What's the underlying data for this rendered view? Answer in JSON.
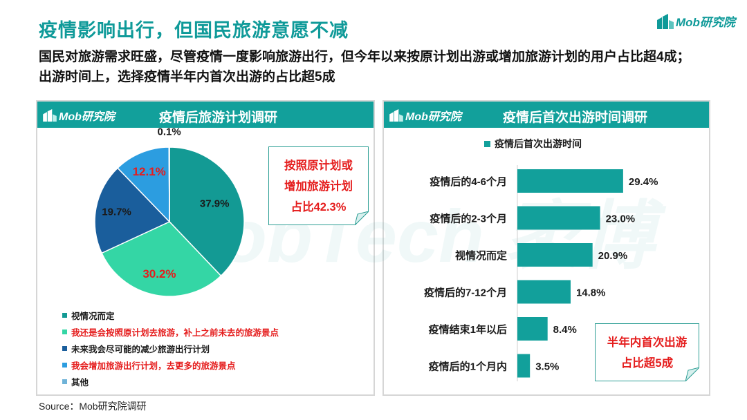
{
  "title": "疫情影响出行，但国民旅游意愿不减",
  "subtitle": "国民对旅游需求旺盛，尽管疫情一度影响旅游出行，但今年以来按原计划出游或增加旅游计划的用户占比超4成；出游时间上，选择疫情半年内首次出游的占比超5成",
  "brand": "Mob研究院",
  "watermark": "MobTech 袤博",
  "colors": {
    "accent": "#12a09b",
    "red": "#e51d1d"
  },
  "left_panel": {
    "title": "疫情后旅游计划调研",
    "logo": "Mob研究院",
    "callout": [
      "按照原计划或",
      "增加旅游计划",
      "占比42.3%"
    ]
  },
  "right_panel": {
    "title": "疫情后首次出游时间调研",
    "logo": "Mob研究院",
    "callout": [
      "半年内首次出游",
      "占比超5成"
    ]
  },
  "source": "Source：Mob研究院调研",
  "chart_data": [
    {
      "type": "pie",
      "title": "疫情后旅游计划调研",
      "slices": [
        {
          "label": "视情况而定",
          "value": 37.9,
          "value_label": "37.9%",
          "color": "#139a94",
          "label_color": "#1a1a1a",
          "legend_color": "#1a1a1a"
        },
        {
          "label": "我还是会按照原计划去旅游，补上之前未去的旅游景点",
          "value": 30.2,
          "value_label": "30.2%",
          "color": "#34d6a5",
          "label_color": "#e51d1d",
          "legend_color": "#e51d1d"
        },
        {
          "label": "未来我会尽可能的减少旅游出行计划",
          "value": 19.7,
          "value_label": "19.7%",
          "color": "#1a5e9c",
          "label_color": "#1a1a1a",
          "legend_color": "#1a1a1a"
        },
        {
          "label": "我会增加旅游出行计划，去更多的旅游景点",
          "value": 12.1,
          "value_label": "12.1%",
          "color": "#2c9de0",
          "label_color": "#e51d1d",
          "legend_color": "#e51d1d"
        },
        {
          "label": "其他",
          "value": 0.1,
          "value_label": "0.1%",
          "color": "#6fb3d8",
          "label_color": "#1a1a1a",
          "legend_color": "#1a1a1a"
        }
      ],
      "legend_placement": "bottom-left"
    },
    {
      "type": "bar",
      "orientation": "horizontal",
      "title": "疫情后首次出游时间调研",
      "series": [
        {
          "name": "疫情后首次出游时间",
          "color": "#12a09b",
          "values": [
            29.4,
            23.0,
            20.9,
            14.8,
            8.4,
            3.5
          ],
          "value_labels": [
            "29.4%",
            "23.0%",
            "20.9%",
            "14.8%",
            "8.4%",
            "3.5%"
          ]
        }
      ],
      "categories": [
        "疫情后的4-6个月",
        "疫情后的2-3个月",
        "视情况而定",
        "疫情后的7-12个月",
        "疫情结束1年以后",
        "疫情后的1个月内"
      ],
      "xlim": [
        0,
        40
      ],
      "grid": false,
      "legend_placement": "top"
    }
  ]
}
